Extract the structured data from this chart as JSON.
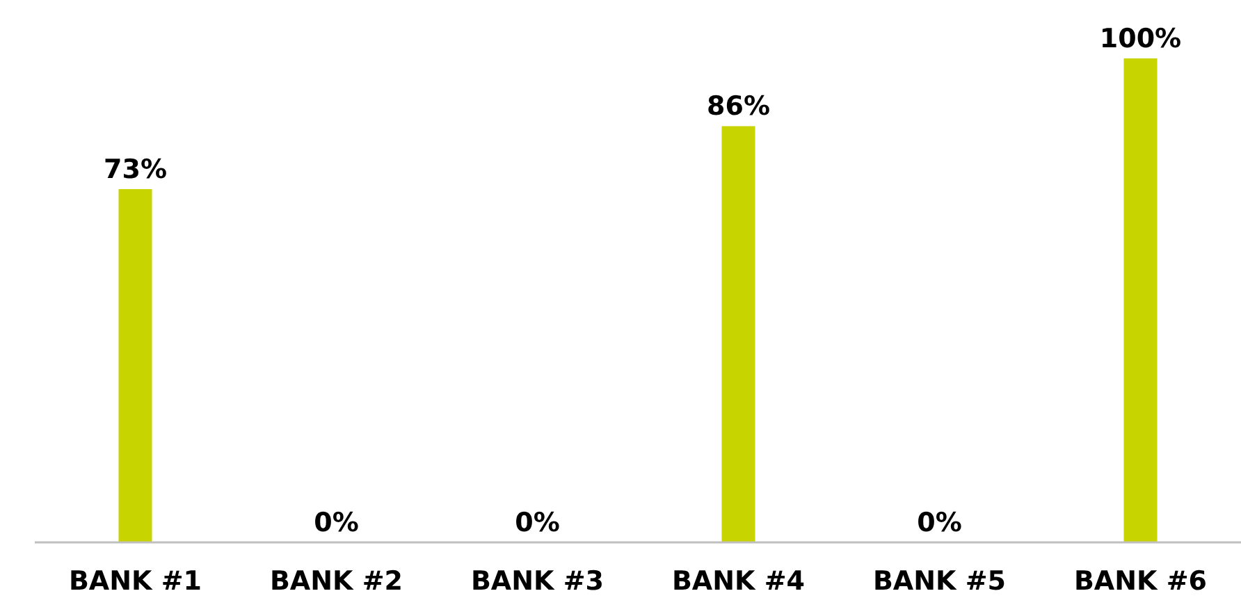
{
  "chart_data": {
    "type": "bar",
    "categories": [
      "BANK #1",
      "BANK #2",
      "BANK #3",
      "BANK #4",
      "BANK #5",
      "BANK #6"
    ],
    "values": [
      73,
      0,
      0,
      86,
      0,
      100
    ],
    "value_labels": [
      "73%",
      "0%",
      "0%",
      "86%",
      "0%",
      "100%"
    ],
    "color": "#c8d400",
    "ylim": [
      0,
      100
    ]
  }
}
